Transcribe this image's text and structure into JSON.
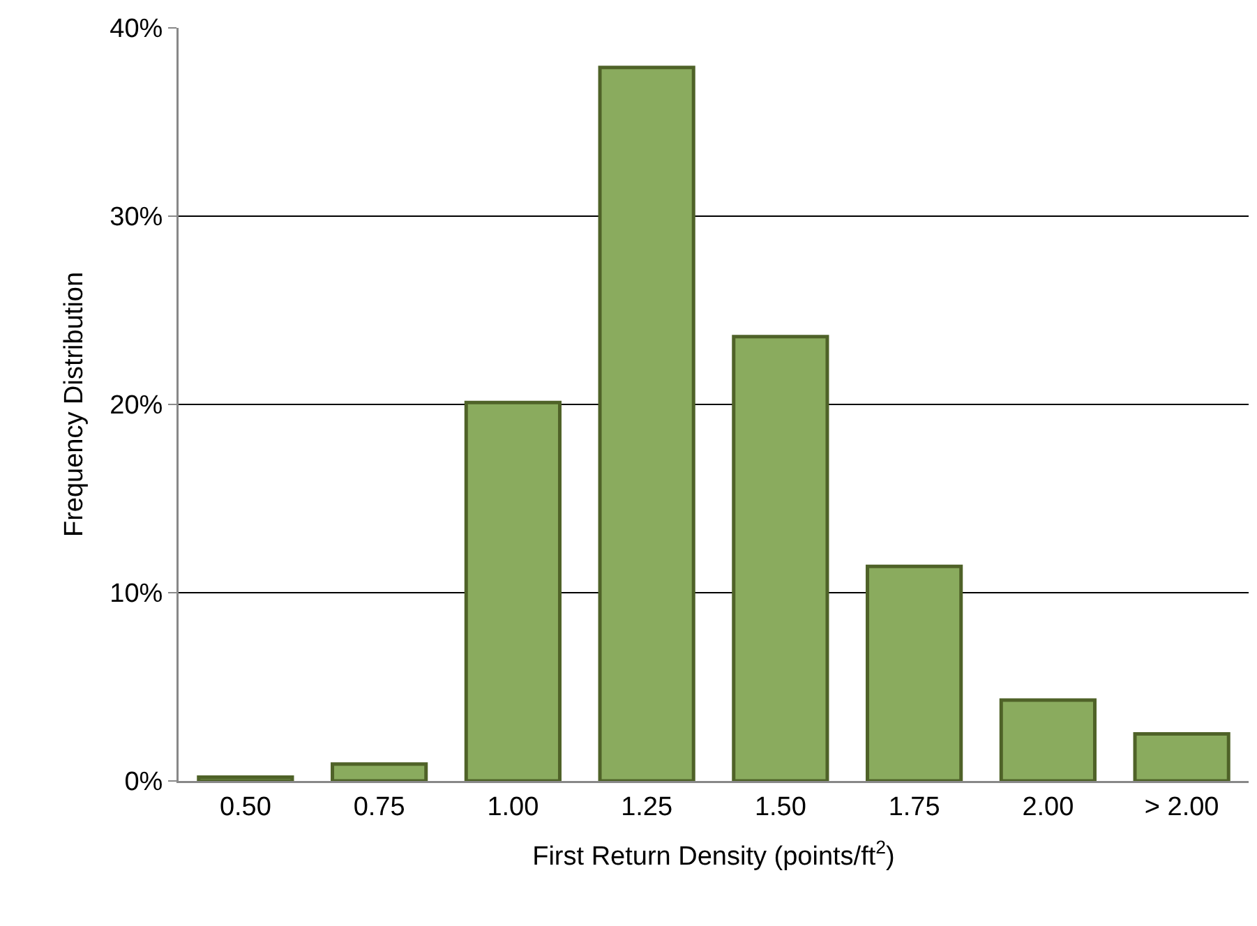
{
  "chart_data": {
    "type": "bar",
    "xlabel": "First Return Density (points/ft$^{2}$)",
    "ylabel": "Frequency Distribution",
    "categories": [
      "0.50",
      "0.75",
      "1.00",
      "1.25",
      "1.50",
      "1.75",
      "2.00",
      "> 2.00"
    ],
    "values": [
      0.2,
      0.9,
      20.1,
      37.9,
      23.6,
      11.4,
      4.3,
      2.5
    ],
    "color": "#8aab5e",
    "ylim": [
      0,
      40
    ],
    "yticks": [
      {
        "value": 0,
        "label": "0%"
      },
      {
        "value": 10,
        "label": "10%"
      },
      {
        "value": 20,
        "label": "20%"
      },
      {
        "value": 30,
        "label": "30%"
      },
      {
        "value": 40,
        "label": "40%"
      }
    ],
    "grid": "y"
  }
}
